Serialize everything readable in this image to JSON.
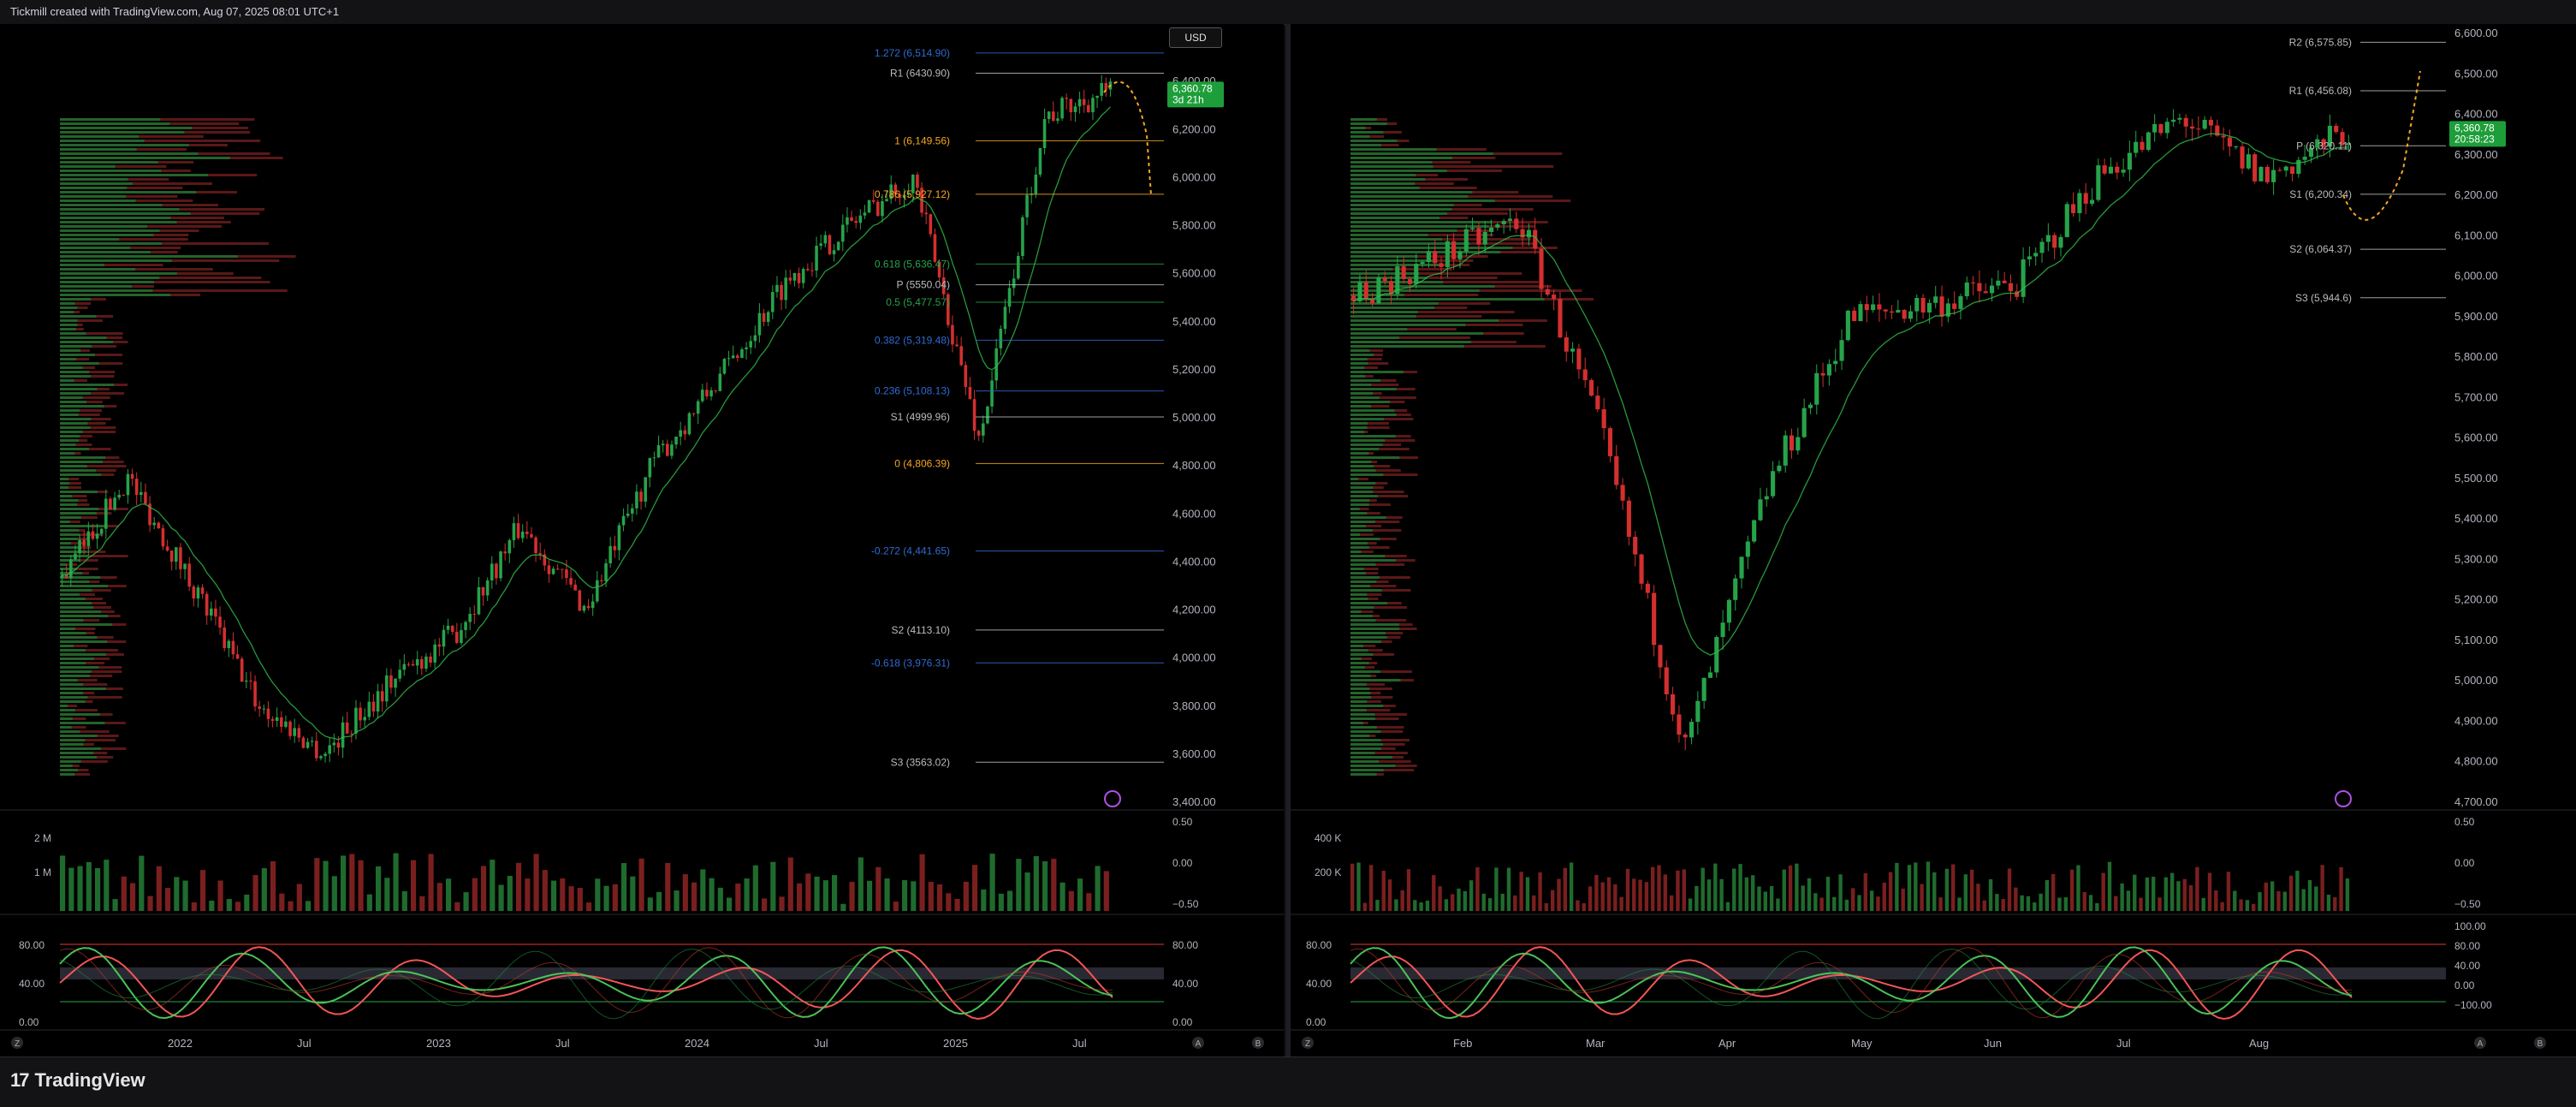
{
  "header": {
    "credit": "Tickmill created with TradingView.com, Aug 07, 2025 08:01 UTC+1",
    "currency_button": "USD"
  },
  "footer": {
    "brand": "TradingView",
    "logo_text": "17"
  },
  "colors": {
    "bull": "#26a34a",
    "bear": "#d32f2f",
    "fib_blue": "#2f6ad1",
    "fib_orange": "#f5a623",
    "level_red": "#e53935",
    "level_yellow": "#ffb300",
    "price_tag": "#1e9e3a",
    "purple_icon": "#b050e0"
  },
  "left_chart": {
    "price_axis": [
      "6,600.00",
      "6,400.00",
      "6,200.00",
      "6,000.00",
      "5,800.00",
      "5,600.00",
      "5,400.00",
      "5,200.00",
      "5,000.00",
      "4,800.00",
      "4,600.00",
      "4,400.00",
      "4,200.00",
      "4,000.00",
      "3,800.00",
      "3,600.00",
      "3,400.00"
    ],
    "price_tag_value": "6,360.78",
    "price_tag_countdown": "3d 21h",
    "levels": [
      {
        "label": "1.272 (6,514.90)",
        "color": "#2f6ad1"
      },
      {
        "label": "R1 (6430.90)",
        "color": "#bbbbbb"
      },
      {
        "label": "1 (6,149.56)",
        "color": "#f5a623"
      },
      {
        "label": "0.786 (5,927.12)",
        "color": "#f5a623"
      },
      {
        "label": "0.618 (5,636.47)",
        "color": "#26a34a"
      },
      {
        "label": "P (5550.04)",
        "color": "#bbbbbb"
      },
      {
        "label": "0.5 (5,477.57)",
        "color": "#26a34a"
      },
      {
        "label": "0.382 (5,319.48)",
        "color": "#2f6ad1"
      },
      {
        "label": "0.236 (5,108.13)",
        "color": "#2f6ad1"
      },
      {
        "label": "S1 (4999.96)",
        "color": "#bbbbbb"
      },
      {
        "label": "0 (4,806.39)",
        "color": "#f5a623"
      },
      {
        "label": "-0.272 (4,441.65)",
        "color": "#2f6ad1"
      },
      {
        "label": "S2 (4113.10)",
        "color": "#bbbbbb"
      },
      {
        "label": "-0.618 (3,976.31)",
        "color": "#2f6ad1"
      },
      {
        "label": "S3 (3563.02)",
        "color": "#bbbbbb"
      }
    ],
    "volume_axis": [
      "2 M",
      "1 M"
    ],
    "volume_axis_right": [
      "0.50",
      "0.00",
      "−0.50"
    ],
    "osc_axis_left": [
      "80.00",
      "40.00",
      "0.00"
    ],
    "osc_axis_right": [
      "80.00",
      "40.00",
      "0.00"
    ],
    "time_axis": [
      "2022",
      "Jul",
      "2023",
      "Jul",
      "2024",
      "Jul",
      "2025",
      "Jul"
    ],
    "corner_labels": [
      "Z",
      "A",
      "B"
    ]
  },
  "right_chart": {
    "price_axis": [
      "6,600.00",
      "6,500.00",
      "6,400.00",
      "6,300.00",
      "6,200.00",
      "6,100.00",
      "6,000.00",
      "5,900.00",
      "5,800.00",
      "5,700.00",
      "5,600.00",
      "5,500.00",
      "5,400.00",
      "5,300.00",
      "5,200.00",
      "5,100.00",
      "5,000.00",
      "4,900.00",
      "4,800.00",
      "4,700.00"
    ],
    "price_tag_value": "6,360.78",
    "price_tag_countdown": "20:58:23",
    "levels": [
      {
        "label": "R2 (6,575.85)",
        "color": "#bbbbbb"
      },
      {
        "label": "R1 (6,456.08)",
        "color": "#bbbbbb"
      },
      {
        "label": "P (6,320.11)",
        "color": "#bbbbbb"
      },
      {
        "label": "S1 (6,200.34)",
        "color": "#bbbbbb"
      },
      {
        "label": "S2 (6,064.37)",
        "color": "#bbbbbb"
      },
      {
        "label": "S3 (5,944.6)",
        "color": "#bbbbbb"
      }
    ],
    "volume_axis": [
      "400 K",
      "200 K"
    ],
    "volume_axis_right": [
      "0.50",
      "0.00",
      "−0.50"
    ],
    "osc_axis_left": [
      "80.00",
      "40.00",
      "0.00"
    ],
    "osc_axis_right": [
      "100.00",
      "80.00",
      "40.00",
      "0.00",
      "−100.00"
    ],
    "time_axis": [
      "Feb",
      "Mar",
      "Apr",
      "May",
      "Jun",
      "Jul",
      "Aug"
    ],
    "corner_labels": [
      "Z",
      "A",
      "B"
    ]
  },
  "chart_data": [
    {
      "type": "line",
      "title": "",
      "xlabel": "",
      "ylabel": "",
      "x": [
        "2021-10",
        "2022-01",
        "2022-04",
        "2022-07",
        "2022-10",
        "2023-01",
        "2023-04",
        "2023-07",
        "2023-10",
        "2024-01",
        "2024-04",
        "2024-07",
        "2024-10",
        "2025-01",
        "2025-04",
        "2025-07",
        "2025-08"
      ],
      "series": [
        {
          "values": [
            4330,
            4750,
            4300,
            3800,
            3600,
            3900,
            4100,
            4550,
            4200,
            4800,
            5150,
            5550,
            5800,
            6000,
            4900,
            6250,
            6360
          ]
        }
      ],
      "ylim": [
        3400,
        6600
      ]
    },
    {
      "type": "line",
      "title": "",
      "xlabel": "",
      "ylabel": "",
      "x": [
        "2025-01-15",
        "2025-02-01",
        "2025-02-19",
        "2025-03-10",
        "2025-04-08",
        "2025-04-25",
        "2025-05-15",
        "2025-06-01",
        "2025-06-20",
        "2025-07-10",
        "2025-07-28",
        "2025-08-02",
        "2025-08-06"
      ],
      "series": [
        {
          "values": [
            5950,
            6040,
            6140,
            5600,
            4830,
            5480,
            5900,
            5930,
            5980,
            6250,
            6390,
            6240,
            6360
          ]
        }
      ],
      "ylim": [
        4700,
        6600
      ]
    }
  ]
}
